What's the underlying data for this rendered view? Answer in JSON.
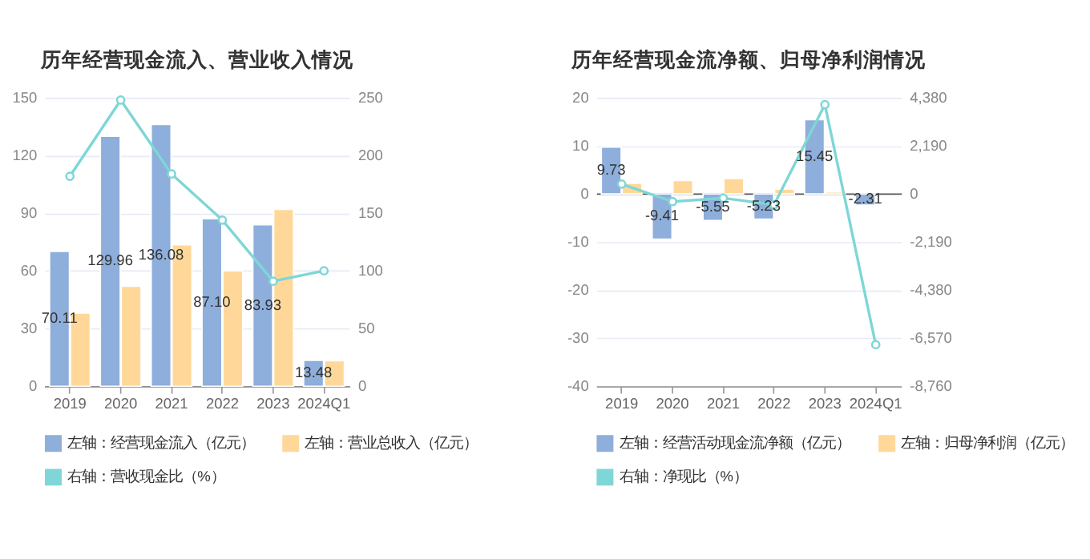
{
  "chart_data": [
    {
      "type": "bar",
      "title": "历年经营现金流入、营业收入情况",
      "categories": [
        "2019",
        "2020",
        "2021",
        "2022",
        "2023",
        "2024Q1"
      ],
      "series": [
        {
          "name": "左轴：经营现金流入（亿元）",
          "color": "#8eaedb",
          "values": [
            70.11,
            129.96,
            136.08,
            87.1,
            83.93,
            13.48
          ],
          "value_labels": [
            "70.11",
            "129.96",
            "136.08",
            "87.10",
            "83.93",
            "13.48"
          ]
        },
        {
          "name": "左轴：营业总收入（亿元）",
          "color": "#ffd899",
          "values": [
            38,
            52,
            73.5,
            60,
            92,
            13.3
          ]
        },
        {
          "name": "右轴：营收现金比（%）",
          "type": "line",
          "axis": "y2",
          "color": "#7fd6d6",
          "values": [
            182,
            248,
            184,
            144,
            91,
            100
          ]
        }
      ],
      "ylim": [
        0,
        150
      ],
      "yticks": [
        0,
        30,
        60,
        90,
        120,
        150
      ],
      "y2lim": [
        0,
        250
      ],
      "y2ticks": [
        0,
        50,
        100,
        150,
        200,
        250
      ],
      "grid": "y",
      "legend": "bottom",
      "marker": "circle"
    },
    {
      "type": "bar",
      "title": "历年经营现金流净额、归母净利润情况",
      "categories": [
        "2019",
        "2020",
        "2021",
        "2022",
        "2023",
        "2024Q1"
      ],
      "series": [
        {
          "name": "左轴：经营活动现金流净额（亿元）",
          "color": "#8eaedb",
          "values": [
            9.73,
            -9.41,
            -5.55,
            -5.23,
            15.45,
            -2.31
          ],
          "value_labels": [
            "9.73",
            "-9.41",
            "-5.55",
            "-5.23",
            "15.45",
            "-2.31"
          ]
        },
        {
          "name": "左轴：归母净利润（亿元）",
          "color": "#ffd899",
          "values": [
            2.2,
            2.8,
            3.2,
            1.0,
            0.4,
            null
          ]
        },
        {
          "name": "右轴：净现比（%）",
          "type": "line",
          "axis": "y2",
          "color": "#7fd6d6",
          "values": [
            450,
            -350,
            -190,
            -490,
            4070,
            -6870
          ]
        }
      ],
      "ylim": [
        -40,
        20
      ],
      "yticks": [
        -40,
        -30,
        -20,
        -10,
        0,
        10,
        20
      ],
      "y2lim": [
        -8760,
        4380
      ],
      "y2ticks": [
        {
          "value": -8760,
          "label": "-8,760"
        },
        {
          "value": -6570,
          "label": "-6,570"
        },
        {
          "value": -4380,
          "label": "-4,380"
        },
        {
          "value": -2190,
          "label": "-2,190"
        },
        0,
        {
          "value": 2190,
          "label": "2,190"
        },
        {
          "value": 4380,
          "label": "4,380"
        }
      ],
      "grid": "y",
      "legend": "bottom",
      "marker": "circle"
    }
  ]
}
